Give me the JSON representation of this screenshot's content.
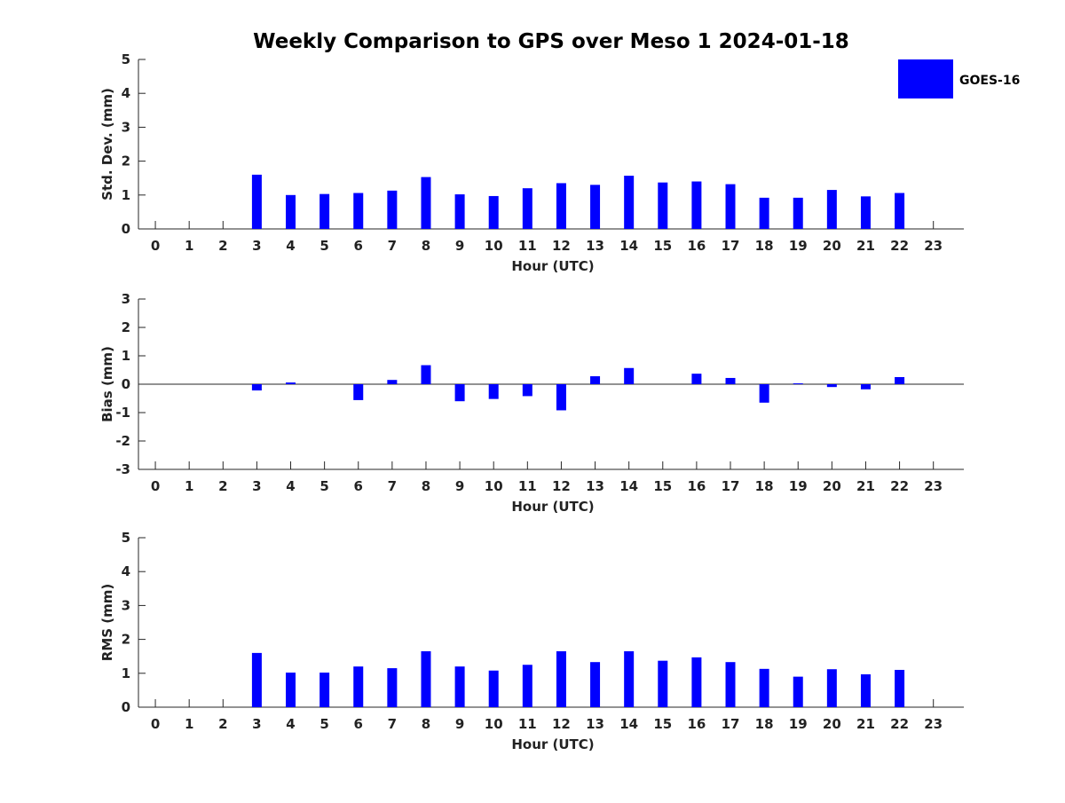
{
  "title": "Weekly Comparison to GPS over Meso 1 2024-01-18",
  "colors": {
    "bar": "#0000ff",
    "axis": "#262626",
    "background": "#ffffff"
  },
  "legend": {
    "label": "GOES-16",
    "placement": "top-right"
  },
  "chart_data": [
    {
      "type": "bar",
      "series_name": "GOES-16",
      "xlabel": "Hour (UTC)",
      "ylabel": "Std. Dev. (mm)",
      "categories": [
        0,
        1,
        2,
        3,
        4,
        5,
        6,
        7,
        8,
        9,
        10,
        11,
        12,
        13,
        14,
        15,
        16,
        17,
        18,
        19,
        20,
        21,
        22,
        23
      ],
      "values": [
        null,
        null,
        null,
        1.6,
        1.0,
        1.03,
        1.06,
        1.13,
        1.53,
        1.02,
        0.97,
        1.2,
        1.35,
        1.3,
        1.57,
        1.37,
        1.4,
        1.32,
        0.92,
        0.92,
        1.15,
        0.96,
        1.06,
        null
      ],
      "ylim": [
        0,
        5
      ],
      "yticks": [
        0,
        1,
        2,
        3,
        4,
        5
      ],
      "grid": false
    },
    {
      "type": "bar",
      "series_name": "GOES-16",
      "xlabel": "Hour (UTC)",
      "ylabel": "Bias (mm)",
      "categories": [
        0,
        1,
        2,
        3,
        4,
        5,
        6,
        7,
        8,
        9,
        10,
        11,
        12,
        13,
        14,
        15,
        16,
        17,
        18,
        19,
        20,
        21,
        22,
        23
      ],
      "values": [
        null,
        null,
        null,
        -0.22,
        0.06,
        0.0,
        -0.56,
        0.15,
        0.67,
        -0.6,
        -0.52,
        -0.42,
        -0.92,
        0.28,
        0.57,
        0.0,
        0.37,
        0.22,
        -0.65,
        0.03,
        -0.1,
        -0.18,
        0.25,
        null
      ],
      "ylim": [
        -3,
        3
      ],
      "yticks": [
        -3,
        -2,
        -1,
        0,
        1,
        2,
        3
      ],
      "zero_line": true,
      "grid": false
    },
    {
      "type": "bar",
      "series_name": "GOES-16",
      "xlabel": "Hour (UTC)",
      "ylabel": "RMS (mm)",
      "categories": [
        0,
        1,
        2,
        3,
        4,
        5,
        6,
        7,
        8,
        9,
        10,
        11,
        12,
        13,
        14,
        15,
        16,
        17,
        18,
        19,
        20,
        21,
        22,
        23
      ],
      "values": [
        null,
        null,
        null,
        1.6,
        1.02,
        1.02,
        1.2,
        1.15,
        1.65,
        1.2,
        1.08,
        1.25,
        1.65,
        1.33,
        1.65,
        1.37,
        1.47,
        1.33,
        1.13,
        0.9,
        1.12,
        0.97,
        1.1,
        null
      ],
      "ylim": [
        0,
        5
      ],
      "yticks": [
        0,
        1,
        2,
        3,
        4,
        5
      ],
      "grid": false
    }
  ]
}
